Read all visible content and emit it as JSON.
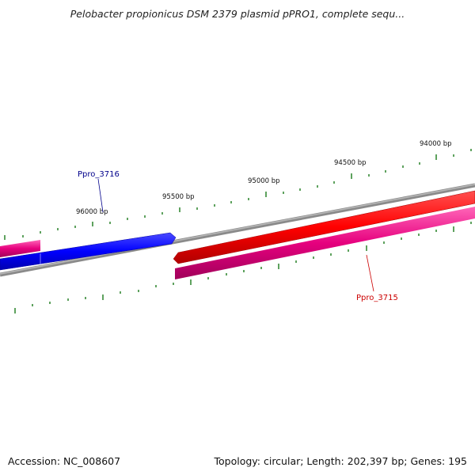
{
  "title": "Pelobacter propionicus DSM 2379 plasmid pPRO1, complete sequ...",
  "footer": {
    "accession": "Accession: NC_008607",
    "summary": "Topology: circular; Length: 202,397 bp; Genes: 195"
  },
  "scale_labels": [
    {
      "text": "96000 bp"
    },
    {
      "text": "95500 bp"
    },
    {
      "text": "95000 bp"
    },
    {
      "text": "94500 bp"
    },
    {
      "text": "94000 bp"
    }
  ],
  "genes": [
    {
      "name": "Ppro_3716",
      "strand": "reverse",
      "color": "#0000ff"
    },
    {
      "name": "Ppro_3715",
      "strand": "forward",
      "color": "#ff0000"
    }
  ],
  "colors": {
    "backbone": "#808080",
    "ticks": "#1a7a1a",
    "pink_track": "#e6007e",
    "reverse_label": "#00008b",
    "forward_label": "#cc0000"
  }
}
